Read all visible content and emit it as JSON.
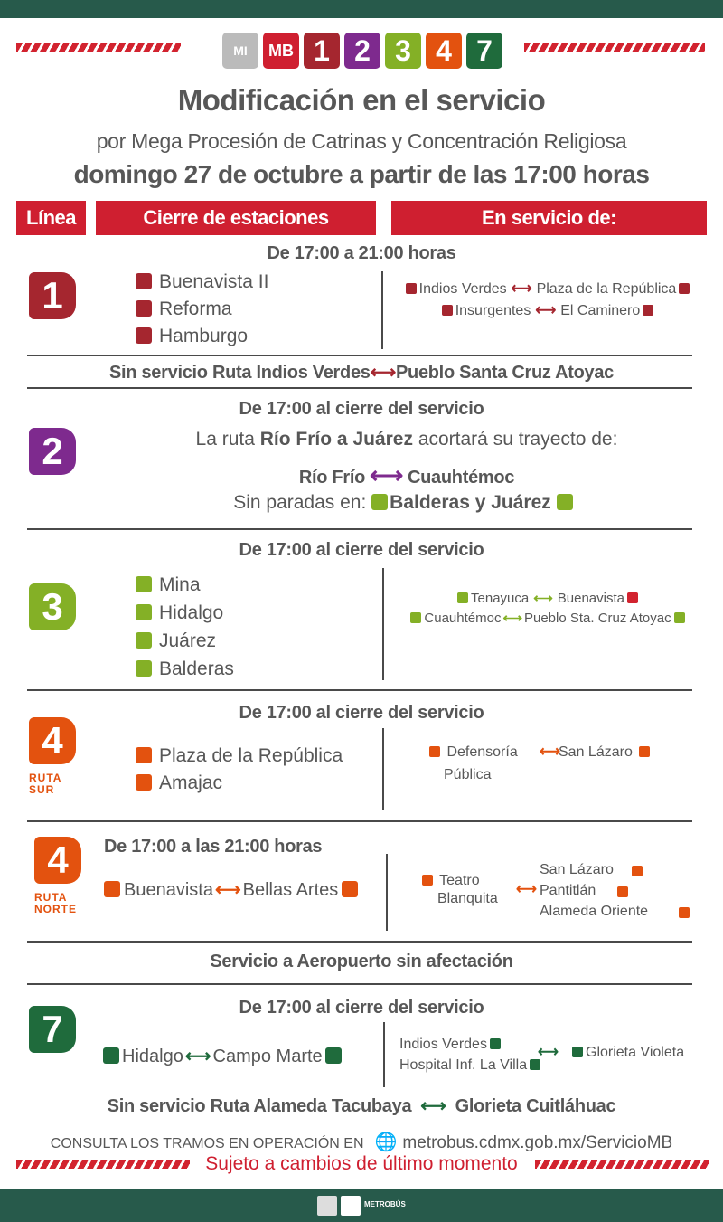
{
  "colors": {
    "red": "#cf1f30",
    "line1": "#a5262f",
    "line2": "#7e2a8e",
    "line3": "#84b026",
    "line4": "#e3520f",
    "line7": "#1f6b3c",
    "dark_green": "#275a4b"
  },
  "logos": {
    "mi": "MI",
    "mb": "MB",
    "l1": "1",
    "l2": "2",
    "l3": "3",
    "l4": "4",
    "l7": "7"
  },
  "title": "Modificación en el servicio",
  "subtitle": "por Mega Procesión de Catrinas y Concentración Religiosa",
  "date": "domingo 27 de octubre a partir de las 17:00 horas",
  "headers": {
    "linea": "Línea",
    "cierre": "Cierre de estaciones",
    "servicio": "En servicio de:"
  },
  "l1": {
    "num": "1",
    "time": "De 17:00 a 21:00 horas",
    "stations": [
      "Buenavista II",
      "Reforma",
      "Hamburgo"
    ],
    "service": [
      [
        "Indios Verdes",
        "Plaza de la República"
      ],
      [
        "Insurgentes",
        "El Caminero"
      ]
    ],
    "note": "Sin servicio Ruta Indios Verdes",
    "note_end": "Pueblo Santa Cruz Atoyac"
  },
  "l2": {
    "num": "2",
    "time": "De 17:00 al cierre del servicio",
    "text_a": "La ruta ",
    "text_b": "Río Frío a Juárez",
    "text_c": " acortará su trayecto de:",
    "from": "Río Frío",
    "to": "Cuauhtémoc",
    "noparadas": "Sin paradas en: ",
    "noparadas_b": "Balderas y Juárez"
  },
  "l3": {
    "num": "3",
    "time": "De 17:00 al cierre del servicio",
    "stations": [
      "Mina",
      "Hidalgo",
      "Juárez",
      "Balderas"
    ],
    "service": [
      [
        "Tenayuca",
        "Buenavista"
      ],
      [
        "Cuauhtémoc",
        "Pueblo Sta. Cruz Atoyac"
      ]
    ]
  },
  "l4s": {
    "num": "4",
    "sub1": "RUTA",
    "sub2": "SUR",
    "time": "De 17:00 al cierre del servicio",
    "stations": [
      "Plaza de la República",
      "Amajac"
    ],
    "from1": "Defensoría",
    "from2": "Pública",
    "to": "San Lázaro"
  },
  "l4n": {
    "num": "4",
    "sub1": "RUTA",
    "sub2": "NORTE",
    "time": "De 17:00 a las 21:00 horas",
    "from": "Buenavista",
    "to": "Bellas Artes",
    "s_from1": "Teatro",
    "s_from2": "Blanquita",
    "s_to": [
      "San Lázaro",
      "Pantitlán",
      "Alameda Oriente"
    ]
  },
  "aeropuerto": "Servicio a Aeropuerto sin afectación",
  "l7": {
    "num": "7",
    "time": "De 17:00 al cierre del servicio",
    "from": "Hidalgo",
    "to": "Campo Marte",
    "s_from": [
      "Indios Verdes",
      "Hospital Inf. La Villa"
    ],
    "s_to": "Glorieta Violeta",
    "note": "Sin servicio Ruta Alameda Tacubaya",
    "note_end": "Glorieta Cuitláhuac"
  },
  "footer": {
    "consulta": "CONSULTA LOS TRAMOS EN OPERACIÓN EN",
    "url": "metrobus.cdmx.gob.mx/ServicioMB",
    "sujeto": "Sujeto a cambios de último momento",
    "brand": "METROBÚS"
  }
}
